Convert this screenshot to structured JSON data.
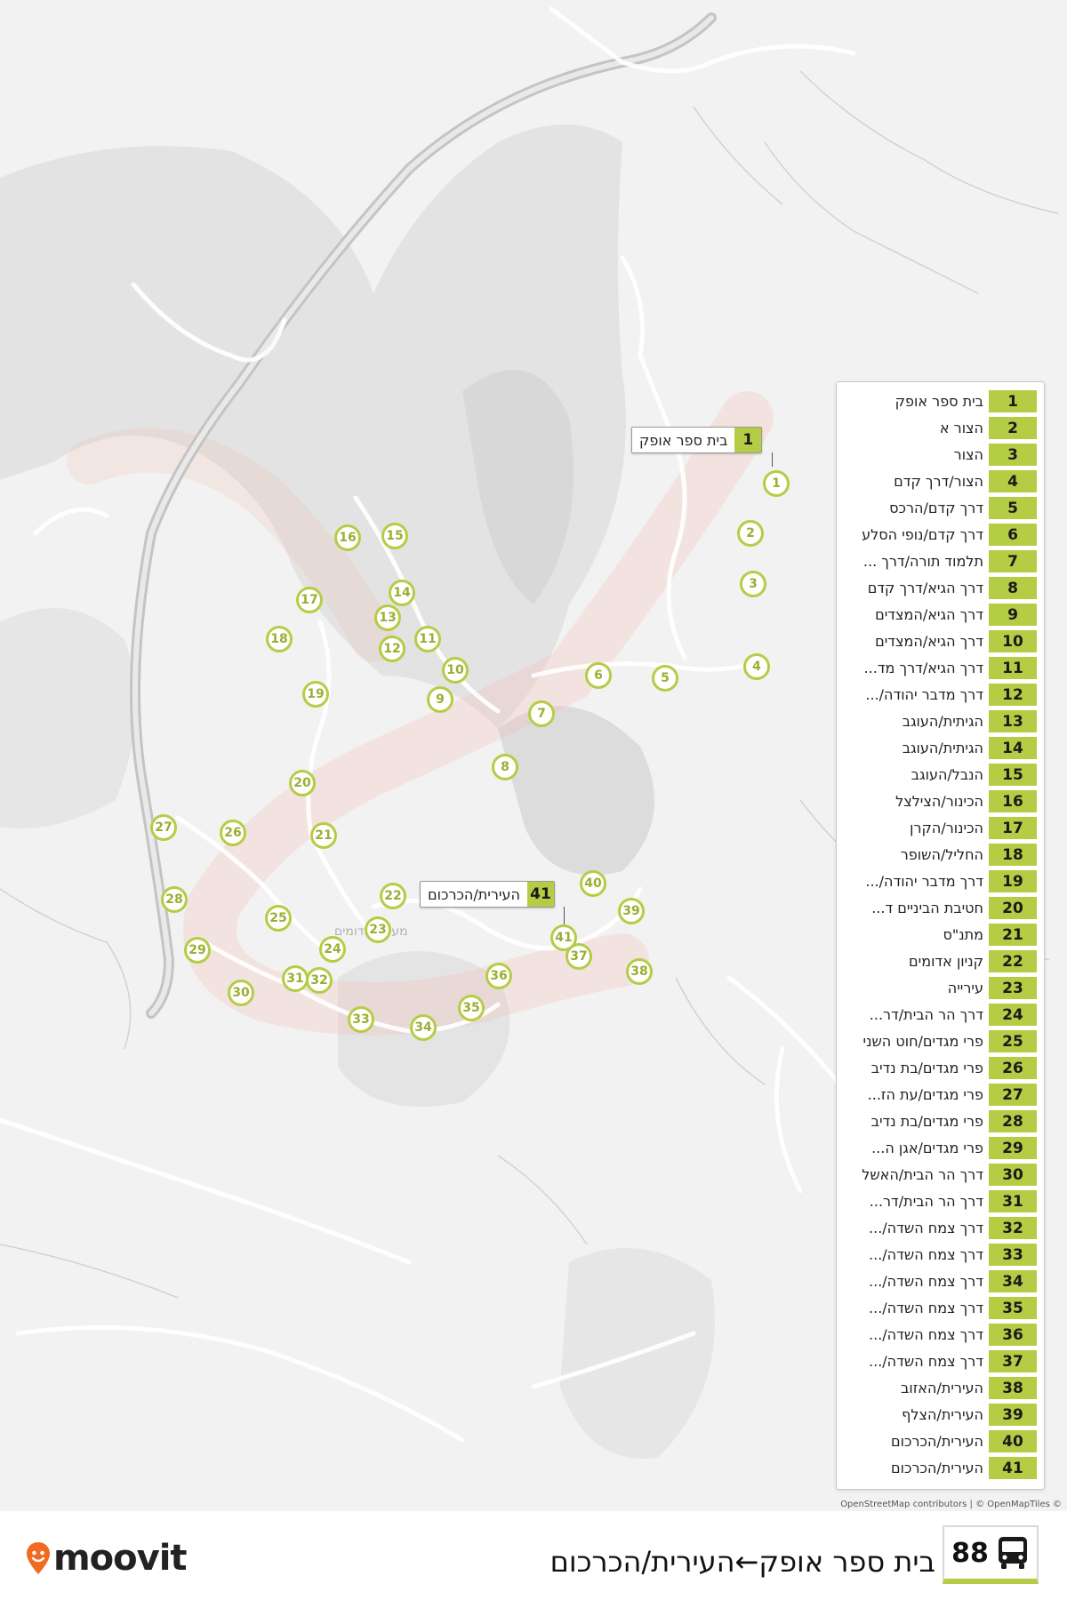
{
  "map": {
    "callouts": [
      {
        "number": "1",
        "name": "בית ספר אופק"
      },
      {
        "number": "41",
        "name": "העירית/הכרכום"
      }
    ],
    "stops": [
      {
        "number": "1"
      },
      {
        "number": "2"
      },
      {
        "number": "3"
      },
      {
        "number": "4"
      },
      {
        "number": "5"
      },
      {
        "number": "6"
      },
      {
        "number": "7"
      },
      {
        "number": "8"
      },
      {
        "number": "9"
      },
      {
        "number": "10"
      },
      {
        "number": "11"
      },
      {
        "number": "12"
      },
      {
        "number": "13"
      },
      {
        "number": "14"
      },
      {
        "number": "15"
      },
      {
        "number": "16"
      },
      {
        "number": "17"
      },
      {
        "number": "18"
      },
      {
        "number": "19"
      },
      {
        "number": "20"
      },
      {
        "number": "21"
      },
      {
        "number": "22"
      },
      {
        "number": "23"
      },
      {
        "number": "24"
      },
      {
        "number": "25"
      },
      {
        "number": "26"
      },
      {
        "number": "27"
      },
      {
        "number": "28"
      },
      {
        "number": "29"
      },
      {
        "number": "30"
      },
      {
        "number": "31"
      },
      {
        "number": "32"
      },
      {
        "number": "33"
      },
      {
        "number": "34"
      },
      {
        "number": "35"
      },
      {
        "number": "36"
      },
      {
        "number": "37"
      },
      {
        "number": "38"
      },
      {
        "number": "39"
      },
      {
        "number": "40"
      },
      {
        "number": "41"
      }
    ],
    "map_label": "מעלה אדומים",
    "attribution": "OpenStreetMap contributors | © OpenMapTiles ©"
  },
  "legend": [
    {
      "number": "1",
      "name": "בית ספר אופק"
    },
    {
      "number": "2",
      "name": "הצור א"
    },
    {
      "number": "3",
      "name": "הצור"
    },
    {
      "number": "4",
      "name": "הצור/דרך קדם"
    },
    {
      "number": "5",
      "name": "דרך קדם/הרכס"
    },
    {
      "number": "6",
      "name": "דרך קדם/נופי הסלע"
    },
    {
      "number": "7",
      "name": "תלמוד תורה/דרך ..."
    },
    {
      "number": "8",
      "name": "דרך הגיא/דרך קדם"
    },
    {
      "number": "9",
      "name": "דרך הגיא/המצדים"
    },
    {
      "number": "10",
      "name": "דרך הגיא/המצדים"
    },
    {
      "number": "11",
      "name": "דרך הגיא/דרך מד..."
    },
    {
      "number": "12",
      "name": "דרך מדבר יהודה/..."
    },
    {
      "number": "13",
      "name": "הגיתית/העוגב"
    },
    {
      "number": "14",
      "name": "הגיתית/העוגב"
    },
    {
      "number": "15",
      "name": "הנבל/העוגב"
    },
    {
      "number": "16",
      "name": "הכינור/הצילצל"
    },
    {
      "number": "17",
      "name": "הכינור/הקרן"
    },
    {
      "number": "18",
      "name": "החליל/השופר"
    },
    {
      "number": "19",
      "name": "דרך מדבר יהודה/..."
    },
    {
      "number": "20",
      "name": "חטיבת הביניים ד..."
    },
    {
      "number": "21",
      "name": "מתנ\"ס"
    },
    {
      "number": "22",
      "name": "קניון אדומים"
    },
    {
      "number": "23",
      "name": "עירייה"
    },
    {
      "number": "24",
      "name": "דרך הר הבית/דר..."
    },
    {
      "number": "25",
      "name": "פרי מגדים/חוט השני"
    },
    {
      "number": "26",
      "name": "פרי מגדים/בת נדיב"
    },
    {
      "number": "27",
      "name": "פרי מגדים/עת הז..."
    },
    {
      "number": "28",
      "name": "פרי מגדים/בת נדיב"
    },
    {
      "number": "29",
      "name": "פרי מגדים/אגן ה..."
    },
    {
      "number": "30",
      "name": "דרך הר הבית/האשל"
    },
    {
      "number": "31",
      "name": "דרך הר הבית/דר..."
    },
    {
      "number": "32",
      "name": "דרך צמח השדה/..."
    },
    {
      "number": "33",
      "name": "דרך צמח השדה/..."
    },
    {
      "number": "34",
      "name": "דרך צמח השדה/..."
    },
    {
      "number": "35",
      "name": "דרך צמח השדה/..."
    },
    {
      "number": "36",
      "name": "דרך צמח השדה/..."
    },
    {
      "number": "37",
      "name": "דרך צמח השדה/..."
    },
    {
      "number": "38",
      "name": "העירית/האזוב"
    },
    {
      "number": "39",
      "name": "העירית/הצלף"
    },
    {
      "number": "40",
      "name": "העירית/הכרכום"
    },
    {
      "number": "41",
      "name": "העירית/הכרכום"
    }
  ],
  "footer": {
    "brand": "moovit",
    "route_number": "88",
    "route_title": "בית ספר אופק←העירית/הכרכום",
    "bus_icon": "bus-icon"
  },
  "colors": {
    "accent": "#b5cc45",
    "route_line": "#f26a4f",
    "terrain": "#e0e0e0",
    "road": "#cfcfcf"
  }
}
